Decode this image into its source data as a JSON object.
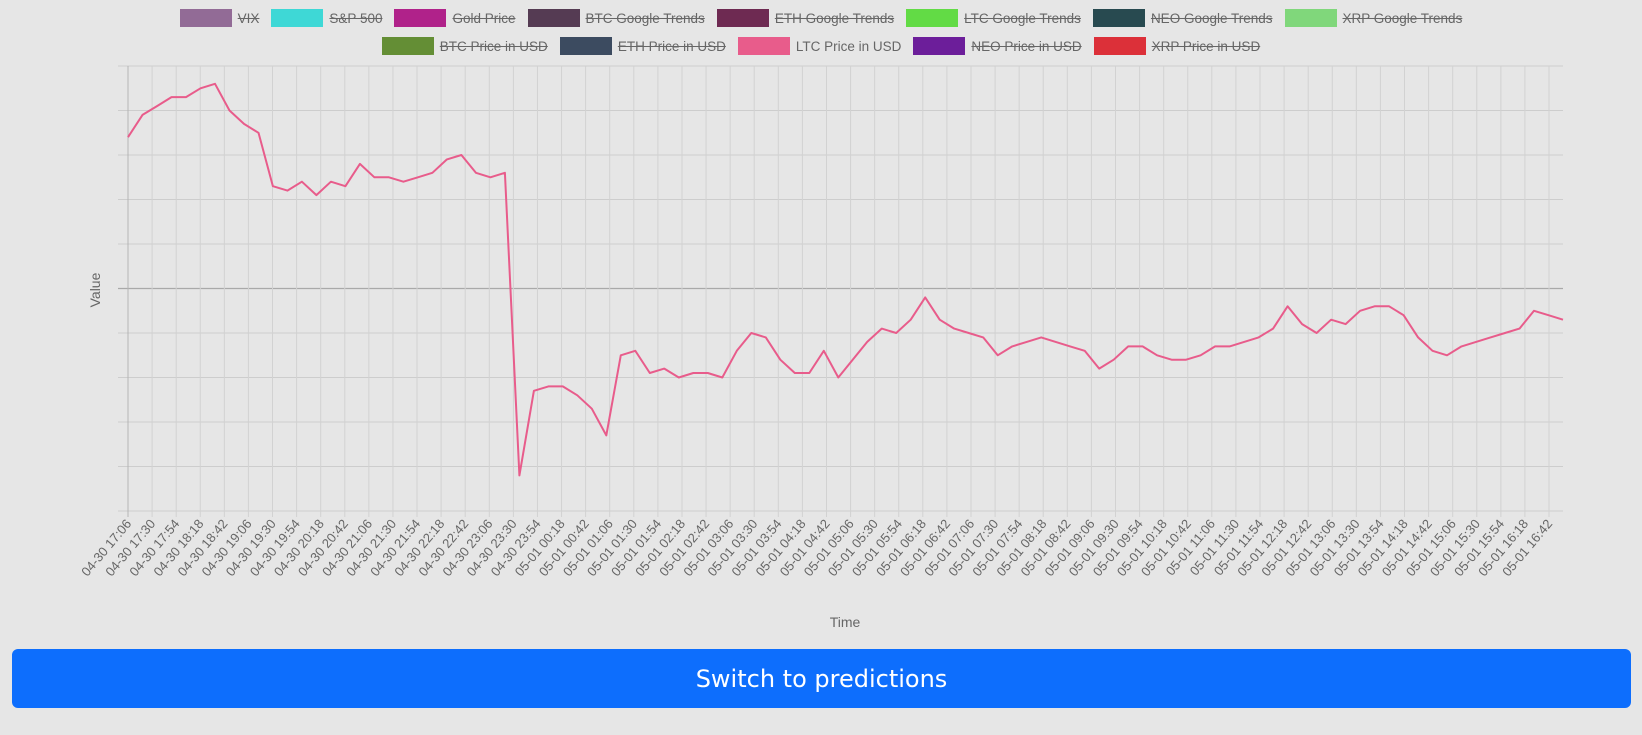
{
  "legend": {
    "row1": [
      {
        "label": "VIX",
        "color": "#926b96",
        "hidden": true
      },
      {
        "label": "S&P 500",
        "color": "#3ed8d6",
        "hidden": true
      },
      {
        "label": "Gold Price",
        "color": "#b0228a",
        "hidden": true
      },
      {
        "label": "BTC Google Trends",
        "color": "#553b53",
        "hidden": true
      },
      {
        "label": "ETH Google Trends",
        "color": "#6e2a52",
        "hidden": true
      },
      {
        "label": "LTC Google Trends",
        "color": "#62db45",
        "hidden": true
      },
      {
        "label": "NEO Google Trends",
        "color": "#284a50",
        "hidden": true
      },
      {
        "label": "XRP Google Trends",
        "color": "#80d77b",
        "hidden": true
      }
    ],
    "row2": [
      {
        "label": "BTC Price in USD",
        "color": "#648e35",
        "hidden": true
      },
      {
        "label": "ETH Price in USD",
        "color": "#3c4b60",
        "hidden": true
      },
      {
        "label": "LTC Price in USD",
        "color": "#e85c8b",
        "hidden": false
      },
      {
        "label": "NEO Price in USD",
        "color": "#6c1e9a",
        "hidden": true
      },
      {
        "label": "XRP Price in USD",
        "color": "#dc3039",
        "hidden": true
      }
    ]
  },
  "chart_data": {
    "type": "line",
    "xlabel": "Time",
    "ylabel": "Value",
    "grid": true,
    "y_tick_labels_shown": false,
    "x_tick_labels": [
      "04-30 17:06",
      "04-30 17:30",
      "04-30 17:54",
      "04-30 18:18",
      "04-30 18:42",
      "04-30 19:06",
      "04-30 19:30",
      "04-30 19:54",
      "04-30 20:18",
      "04-30 20:42",
      "04-30 21:06",
      "04-30 21:30",
      "04-30 21:54",
      "04-30 22:18",
      "04-30 22:42",
      "04-30 23:06",
      "04-30 23:30",
      "04-30 23:54",
      "05-01 00:18",
      "05-01 00:42",
      "05-01 01:06",
      "05-01 01:30",
      "05-01 01:54",
      "05-01 02:18",
      "05-01 02:42",
      "05-01 03:06",
      "05-01 03:30",
      "05-01 03:54",
      "05-01 04:18",
      "05-01 04:42",
      "05-01 05:06",
      "05-01 05:30",
      "05-01 05:54",
      "05-01 06:18",
      "05-01 06:42",
      "05-01 07:06",
      "05-01 07:30",
      "05-01 07:54",
      "05-01 08:18",
      "05-01 08:42",
      "05-01 09:06",
      "05-01 09:30",
      "05-01 09:54",
      "05-01 10:18",
      "05-01 10:42",
      "05-01 11:06",
      "05-01 11:30",
      "05-01 11:54",
      "05-01 12:18",
      "05-01 12:42",
      "05-01 13:06",
      "05-01 13:30",
      "05-01 13:54",
      "05-01 14:18",
      "05-01 14:42",
      "05-01 15:06",
      "05-01 15:30",
      "05-01 15:54",
      "05-01 16:18",
      "05-01 16:42"
    ],
    "ylim": [
      0,
      10
    ],
    "series": [
      {
        "name": "LTC Price in USD",
        "color": "#e85c8b",
        "values": [
          8.4,
          8.9,
          9.1,
          9.3,
          9.3,
          9.5,
          9.6,
          9.0,
          8.7,
          8.5,
          7.3,
          7.2,
          7.4,
          7.1,
          7.4,
          7.3,
          7.8,
          7.5,
          7.5,
          7.4,
          7.5,
          7.6,
          7.9,
          8.0,
          7.6,
          7.5,
          7.6,
          0.8,
          2.7,
          2.8,
          2.8,
          2.6,
          2.3,
          1.7,
          3.5,
          3.6,
          3.1,
          3.2,
          3.0,
          3.1,
          3.1,
          3.0,
          3.6,
          4.0,
          3.9,
          3.4,
          3.1,
          3.1,
          3.6,
          3.0,
          3.4,
          3.8,
          4.1,
          4.0,
          4.3,
          4.8,
          4.3,
          4.1,
          4.0,
          3.9,
          3.5,
          3.7,
          3.8,
          3.9,
          3.8,
          3.7,
          3.6,
          3.2,
          3.4,
          3.7,
          3.7,
          3.5,
          3.4,
          3.4,
          3.5,
          3.7,
          3.7,
          3.8,
          3.9,
          4.1,
          4.6,
          4.2,
          4.0,
          4.3,
          4.2,
          4.5,
          4.6,
          4.6,
          4.4,
          3.9,
          3.6,
          3.5,
          3.7,
          3.8,
          3.9,
          4.0,
          4.1,
          4.5,
          4.4,
          4.3
        ]
      }
    ]
  },
  "button": {
    "label": "Switch to predictions"
  }
}
